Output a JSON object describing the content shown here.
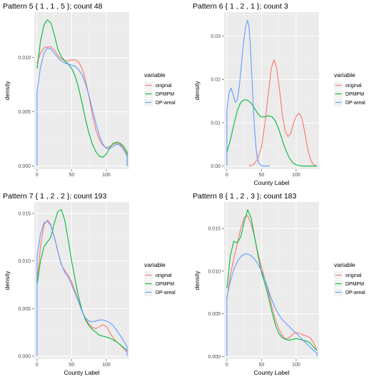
{
  "chart_data": [
    {
      "type": "line",
      "title": "Pattern 5 { 1 , 1 ,  5 }; count 48",
      "xlabel": "",
      "ylabel": "density",
      "xlim": [
        -4,
        133
      ],
      "ylim": [
        -0.0003,
        0.0142
      ],
      "x_ticks": [
        0,
        50,
        100
      ],
      "x_tick_labels": [
        "0",
        "50",
        "100"
      ],
      "y_ticks": [
        0,
        0.005,
        0.01
      ],
      "y_tick_labels": [
        "0.000",
        "0.005",
        "0.010"
      ],
      "grid": true,
      "legend": {
        "title": "variable",
        "position": "right"
      },
      "series": [
        {
          "name": "original",
          "color": "#F8766D",
          "x": [
            0,
            5,
            10,
            15,
            20,
            25,
            30,
            35,
            40,
            45,
            50,
            55,
            60,
            65,
            70,
            75,
            80,
            85,
            90,
            95,
            100,
            105,
            110,
            115,
            120,
            125,
            130,
            130
          ],
          "y": [
            0.0095,
            0.0104,
            0.0109,
            0.011,
            0.011,
            0.0107,
            0.0102,
            0.0099,
            0.0097,
            0.0097,
            0.0098,
            0.0098,
            0.0096,
            0.009,
            0.0079,
            0.0064,
            0.0047,
            0.0033,
            0.0024,
            0.0019,
            0.0017,
            0.0018,
            0.002,
            0.0021,
            0.002,
            0.0016,
            0.0011,
            0.0
          ]
        },
        {
          "name": "DPMPM",
          "color": "#00BA38",
          "x": [
            0,
            5,
            10,
            15,
            20,
            25,
            30,
            35,
            40,
            45,
            50,
            55,
            60,
            65,
            70,
            75,
            80,
            85,
            90,
            95,
            100,
            105,
            110,
            115,
            120,
            125,
            130,
            130
          ],
          "y": [
            0.009,
            0.0115,
            0.013,
            0.0135,
            0.0132,
            0.0121,
            0.0108,
            0.0101,
            0.0097,
            0.0094,
            0.009,
            0.0083,
            0.0072,
            0.0058,
            0.0043,
            0.003,
            0.002,
            0.0013,
            0.0009,
            0.0008,
            0.0011,
            0.0017,
            0.0021,
            0.0022,
            0.0021,
            0.0018,
            0.0013,
            0.0
          ]
        },
        {
          "name": "DP-areal",
          "color": "#619CFF",
          "x": [
            0,
            0,
            5,
            10,
            15,
            20,
            25,
            30,
            35,
            40,
            45,
            50,
            55,
            60,
            65,
            70,
            75,
            80,
            85,
            90,
            95,
            100,
            105,
            110,
            115,
            120,
            125,
            130,
            130
          ],
          "y": [
            0.0,
            0.0068,
            0.0091,
            0.0104,
            0.0109,
            0.0108,
            0.0104,
            0.01,
            0.0097,
            0.0095,
            0.0094,
            0.0093,
            0.0092,
            0.0089,
            0.0084,
            0.0076,
            0.0065,
            0.0052,
            0.0039,
            0.0028,
            0.002,
            0.0016,
            0.0016,
            0.0018,
            0.002,
            0.0019,
            0.0015,
            0.0009,
            0.0
          ]
        }
      ]
    },
    {
      "type": "line",
      "title": "Pattern 6 { 1 , 2 ,  1 }; count 3",
      "xlabel": "County Label",
      "ylabel": "density",
      "xlim": [
        -4,
        133
      ],
      "ylim": [
        -0.0007,
        0.0355
      ],
      "x_ticks": [
        0,
        50,
        100
      ],
      "x_tick_labels": [
        "0",
        "50",
        "100"
      ],
      "y_ticks": [
        0,
        0.01,
        0.02,
        0.03
      ],
      "y_tick_labels": [
        "0.00",
        "0.01",
        "0.02",
        "0.03"
      ],
      "grid": true,
      "legend": {
        "title": "variable",
        "position": "right"
      },
      "series": [
        {
          "name": "original",
          "color": "#F8766D",
          "x": [
            32,
            38,
            44,
            50,
            55,
            60,
            64,
            68,
            72,
            76,
            80,
            84,
            88,
            92,
            96,
            100,
            104,
            108,
            112,
            116,
            120,
            124,
            128,
            130
          ],
          "y": [
            0.0,
            0.0003,
            0.0015,
            0.0045,
            0.01,
            0.017,
            0.0225,
            0.0245,
            0.0225,
            0.0175,
            0.012,
            0.0082,
            0.0068,
            0.0075,
            0.0098,
            0.0115,
            0.0122,
            0.0112,
            0.0082,
            0.0045,
            0.0018,
            0.0005,
            0.0001,
            0.0
          ]
        },
        {
          "name": "DPMPM",
          "color": "#00BA38",
          "x": [
            0,
            5,
            10,
            15,
            20,
            25,
            30,
            35,
            40,
            45,
            50,
            55,
            60,
            65,
            70,
            75,
            80,
            85,
            90,
            95,
            100,
            105,
            110,
            115,
            120,
            125,
            130
          ],
          "y": [
            0.0032,
            0.006,
            0.0095,
            0.0128,
            0.0147,
            0.0153,
            0.0152,
            0.0145,
            0.0133,
            0.012,
            0.0113,
            0.0114,
            0.0116,
            0.0114,
            0.0104,
            0.0085,
            0.006,
            0.0037,
            0.0019,
            0.0008,
            0.0003,
            0.0001,
            0.0,
            0.0,
            0.0,
            0.0,
            0.0
          ]
        },
        {
          "name": "DP-areal",
          "color": "#619CFF",
          "x": [
            0,
            0,
            3,
            6,
            9,
            12,
            15,
            18,
            21,
            24,
            27,
            30,
            32,
            34,
            36,
            38,
            40,
            42,
            44,
            46,
            48,
            50,
            52,
            55,
            58,
            62
          ],
          "y": [
            0.0,
            0.0128,
            0.0168,
            0.018,
            0.0165,
            0.0147,
            0.0152,
            0.0185,
            0.0235,
            0.0285,
            0.0322,
            0.0336,
            0.032,
            0.0275,
            0.021,
            0.014,
            0.0082,
            0.0042,
            0.0018,
            0.0008,
            0.0003,
            0.0001,
            0.0,
            0.0,
            0.0,
            0.0
          ]
        }
      ]
    },
    {
      "type": "line",
      "title": "Pattern 7 { 1 , 2 ,  2 }; count 193",
      "xlabel": "County Label",
      "ylabel": "density",
      "xlim": [
        -4,
        133
      ],
      "ylim": [
        -0.0003,
        0.0162
      ],
      "x_ticks": [
        0,
        50,
        100
      ],
      "x_tick_labels": [
        "0",
        "50",
        "100"
      ],
      "y_ticks": [
        0,
        0.005,
        0.01,
        0.015
      ],
      "y_tick_labels": [
        "0.000",
        "0.005",
        "0.010",
        "0.015"
      ],
      "grid": true,
      "legend": {
        "title": "variable",
        "position": "right"
      },
      "series": [
        {
          "name": "original",
          "color": "#F8766D",
          "x": [
            0,
            5,
            10,
            15,
            20,
            25,
            30,
            35,
            40,
            45,
            50,
            55,
            60,
            65,
            70,
            75,
            80,
            85,
            90,
            95,
            100,
            105,
            110,
            115,
            120,
            125,
            130
          ],
          "y": [
            0.0078,
            0.0115,
            0.0138,
            0.0143,
            0.0138,
            0.0125,
            0.011,
            0.0096,
            0.009,
            0.0085,
            0.0078,
            0.0068,
            0.0058,
            0.0047,
            0.0039,
            0.0034,
            0.003,
            0.0029,
            0.0031,
            0.0033,
            0.0031,
            0.0025,
            0.0019,
            0.0015,
            0.0012,
            0.0008,
            0.0004
          ]
        },
        {
          "name": "DPMPM",
          "color": "#00BA38",
          "x": [
            0,
            5,
            10,
            15,
            20,
            25,
            30,
            35,
            40,
            45,
            50,
            55,
            60,
            65,
            70,
            75,
            80,
            85,
            90,
            95,
            100,
            105,
            110,
            115,
            120,
            125,
            130
          ],
          "y": [
            0.0075,
            0.01,
            0.0115,
            0.012,
            0.0125,
            0.014,
            0.0152,
            0.0154,
            0.0143,
            0.0122,
            0.01,
            0.008,
            0.0062,
            0.0048,
            0.0038,
            0.0032,
            0.0028,
            0.0025,
            0.0022,
            0.0021,
            0.002,
            0.0019,
            0.0017,
            0.0015,
            0.0012,
            0.0009,
            0.0006
          ]
        },
        {
          "name": "DP-areal",
          "color": "#619CFF",
          "x": [
            0,
            0,
            5,
            10,
            15,
            20,
            25,
            30,
            35,
            40,
            45,
            50,
            55,
            60,
            65,
            70,
            75,
            80,
            85,
            90,
            95,
            100,
            105,
            110,
            115,
            120,
            125,
            130,
            130
          ],
          "y": [
            0.0,
            0.0105,
            0.0128,
            0.014,
            0.0142,
            0.0137,
            0.0125,
            0.011,
            0.0097,
            0.0088,
            0.0083,
            0.0075,
            0.0066,
            0.0057,
            0.0047,
            0.004,
            0.0037,
            0.0036,
            0.0037,
            0.0038,
            0.0038,
            0.0037,
            0.0035,
            0.0032,
            0.0027,
            0.0022,
            0.0016,
            0.001,
            0.0
          ]
        }
      ]
    },
    {
      "type": "line",
      "title": "Pattern 8 { 1 , 2 ,  3 }; count 183",
      "xlabel": "County Label",
      "ylabel": "density",
      "xlim": [
        -4,
        133
      ],
      "ylim": [
        -0.0003,
        0.0181
      ],
      "x_ticks": [
        0,
        50,
        100
      ],
      "x_tick_labels": [
        "0",
        "50",
        "100"
      ],
      "y_ticks": [
        0,
        0.005,
        0.01,
        0.015
      ],
      "y_tick_labels": [
        "0.000",
        "0.005",
        "0.010",
        "0.015"
      ],
      "grid": true,
      "legend": {
        "title": "variable",
        "position": "right"
      },
      "series": [
        {
          "name": "original",
          "color": "#F8766D",
          "x": [
            0,
            5,
            10,
            15,
            20,
            25,
            30,
            35,
            40,
            45,
            50,
            55,
            60,
            65,
            70,
            75,
            80,
            85,
            90,
            95,
            100,
            105,
            110,
            115,
            120,
            125,
            130
          ],
          "y": [
            0.0068,
            0.0095,
            0.0115,
            0.0132,
            0.015,
            0.0163,
            0.0165,
            0.0155,
            0.014,
            0.012,
            0.0105,
            0.009,
            0.0075,
            0.0058,
            0.0043,
            0.0032,
            0.0025,
            0.002,
            0.0022,
            0.0026,
            0.0028,
            0.0027,
            0.0025,
            0.0024,
            0.0022,
            0.0016,
            0.0008
          ]
        },
        {
          "name": "DPMPM",
          "color": "#00BA38",
          "x": [
            0,
            5,
            10,
            15,
            20,
            25,
            30,
            35,
            40,
            45,
            50,
            55,
            60,
            65,
            70,
            75,
            80,
            85,
            90,
            95,
            100,
            105,
            110,
            115,
            120,
            125,
            130
          ],
          "y": [
            0.008,
            0.0118,
            0.0135,
            0.0133,
            0.014,
            0.0158,
            0.0172,
            0.0162,
            0.014,
            0.0118,
            0.0098,
            0.0085,
            0.007,
            0.0052,
            0.0037,
            0.0027,
            0.0022,
            0.002,
            0.0019,
            0.002,
            0.0021,
            0.002,
            0.0019,
            0.0018,
            0.0016,
            0.0011,
            0.0007
          ]
        },
        {
          "name": "DP-areal",
          "color": "#619CFF",
          "x": [
            0,
            0,
            5,
            10,
            15,
            20,
            25,
            30,
            35,
            40,
            45,
            50,
            55,
            60,
            65,
            70,
            75,
            80,
            85,
            90,
            95,
            100,
            105,
            110,
            115,
            120,
            125,
            130,
            130
          ],
          "y": [
            0.0,
            0.007,
            0.0088,
            0.0102,
            0.0111,
            0.0117,
            0.012,
            0.012,
            0.0118,
            0.0114,
            0.0108,
            0.01,
            0.009,
            0.0078,
            0.0066,
            0.0056,
            0.0049,
            0.0043,
            0.0039,
            0.0035,
            0.0031,
            0.0027,
            0.0023,
            0.0019,
            0.0015,
            0.0011,
            0.0007,
            0.0004,
            0.0
          ]
        }
      ]
    }
  ]
}
